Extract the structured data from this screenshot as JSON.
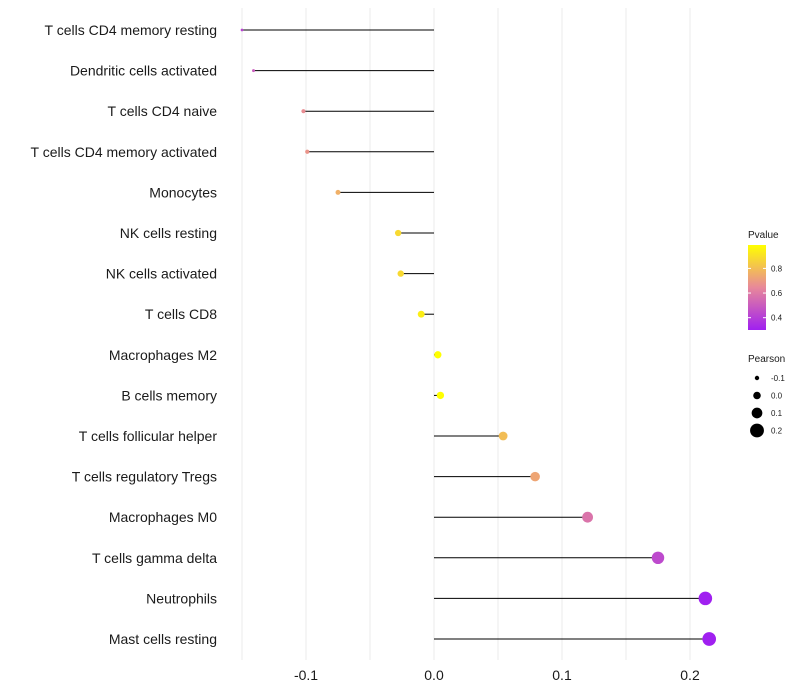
{
  "chart_data": {
    "type": "lollipop",
    "title": "",
    "xlabel": "",
    "ylabel": "",
    "xlim": [
      -0.15,
      0.22
    ],
    "xticks": [
      -0.1,
      0.0,
      0.1,
      0.2
    ],
    "xtick_labels": [
      "-0.1",
      "0.0",
      "0.1",
      "0.2"
    ],
    "baseline": 0.0,
    "grid": true,
    "categories": [
      "T cells CD4 memory resting",
      "Dendritic cells activated",
      "T cells CD4 naive",
      "T cells CD4 memory activated",
      "Monocytes",
      "NK cells resting",
      "NK cells activated",
      "T cells CD8",
      "Macrophages M2",
      "B cells memory",
      "T cells follicular helper",
      "T cells regulatory  Tregs",
      "Macrophages M0",
      "T cells gamma delta",
      "Neutrophils",
      "Mast cells resting"
    ],
    "pearson": [
      -0.15,
      -0.141,
      -0.102,
      -0.099,
      -0.075,
      -0.028,
      -0.026,
      -0.01,
      0.003,
      0.005,
      0.054,
      0.079,
      0.12,
      0.175,
      0.212,
      0.215
    ],
    "pvalue": [
      0.42,
      0.5,
      0.66,
      0.68,
      0.76,
      0.88,
      0.88,
      0.94,
      0.99,
      0.99,
      0.8,
      0.73,
      0.58,
      0.44,
      0.3,
      0.3
    ],
    "legend": {
      "position": "right",
      "color": {
        "title": "Pvalue",
        "ticks": [
          0.4,
          0.6,
          0.8
        ],
        "tick_labels": [
          "0.4",
          "0.6",
          "0.8"
        ],
        "range": [
          0.3,
          0.99
        ],
        "low_color": "#a020f0",
        "mid_color": "#e8889a",
        "high_color": "#ffff00"
      },
      "size": {
        "title": "Pearson",
        "values": [
          -0.1,
          0.0,
          0.1,
          0.2
        ],
        "labels": [
          "-0.1",
          "0.0",
          "0.1",
          "0.2"
        ]
      }
    },
    "segment_color": "#000000",
    "grid_color": "#ebebeb"
  }
}
